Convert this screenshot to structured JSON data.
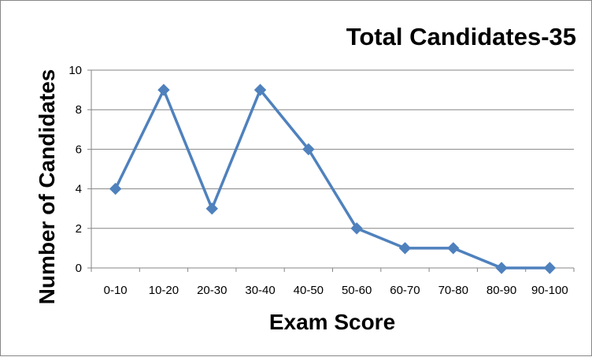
{
  "chart_data": {
    "type": "line",
    "title": "Total Candidates-35",
    "xlabel": "Exam Score",
    "ylabel": "Number of Candidates",
    "categories": [
      "0-10",
      "10-20",
      "20-30",
      "30-40",
      "40-50",
      "50-60",
      "60-70",
      "70-80",
      "80-90",
      "90-100"
    ],
    "series": [
      {
        "values": [
          4,
          9,
          3,
          9,
          6,
          2,
          1,
          1,
          0,
          0
        ],
        "color": "#4f81bd",
        "marker": "diamond"
      }
    ],
    "ylim": [
      0,
      10
    ],
    "yticks": [
      0,
      2,
      4,
      6,
      8,
      10
    ],
    "grid": true,
    "legend": "none"
  }
}
